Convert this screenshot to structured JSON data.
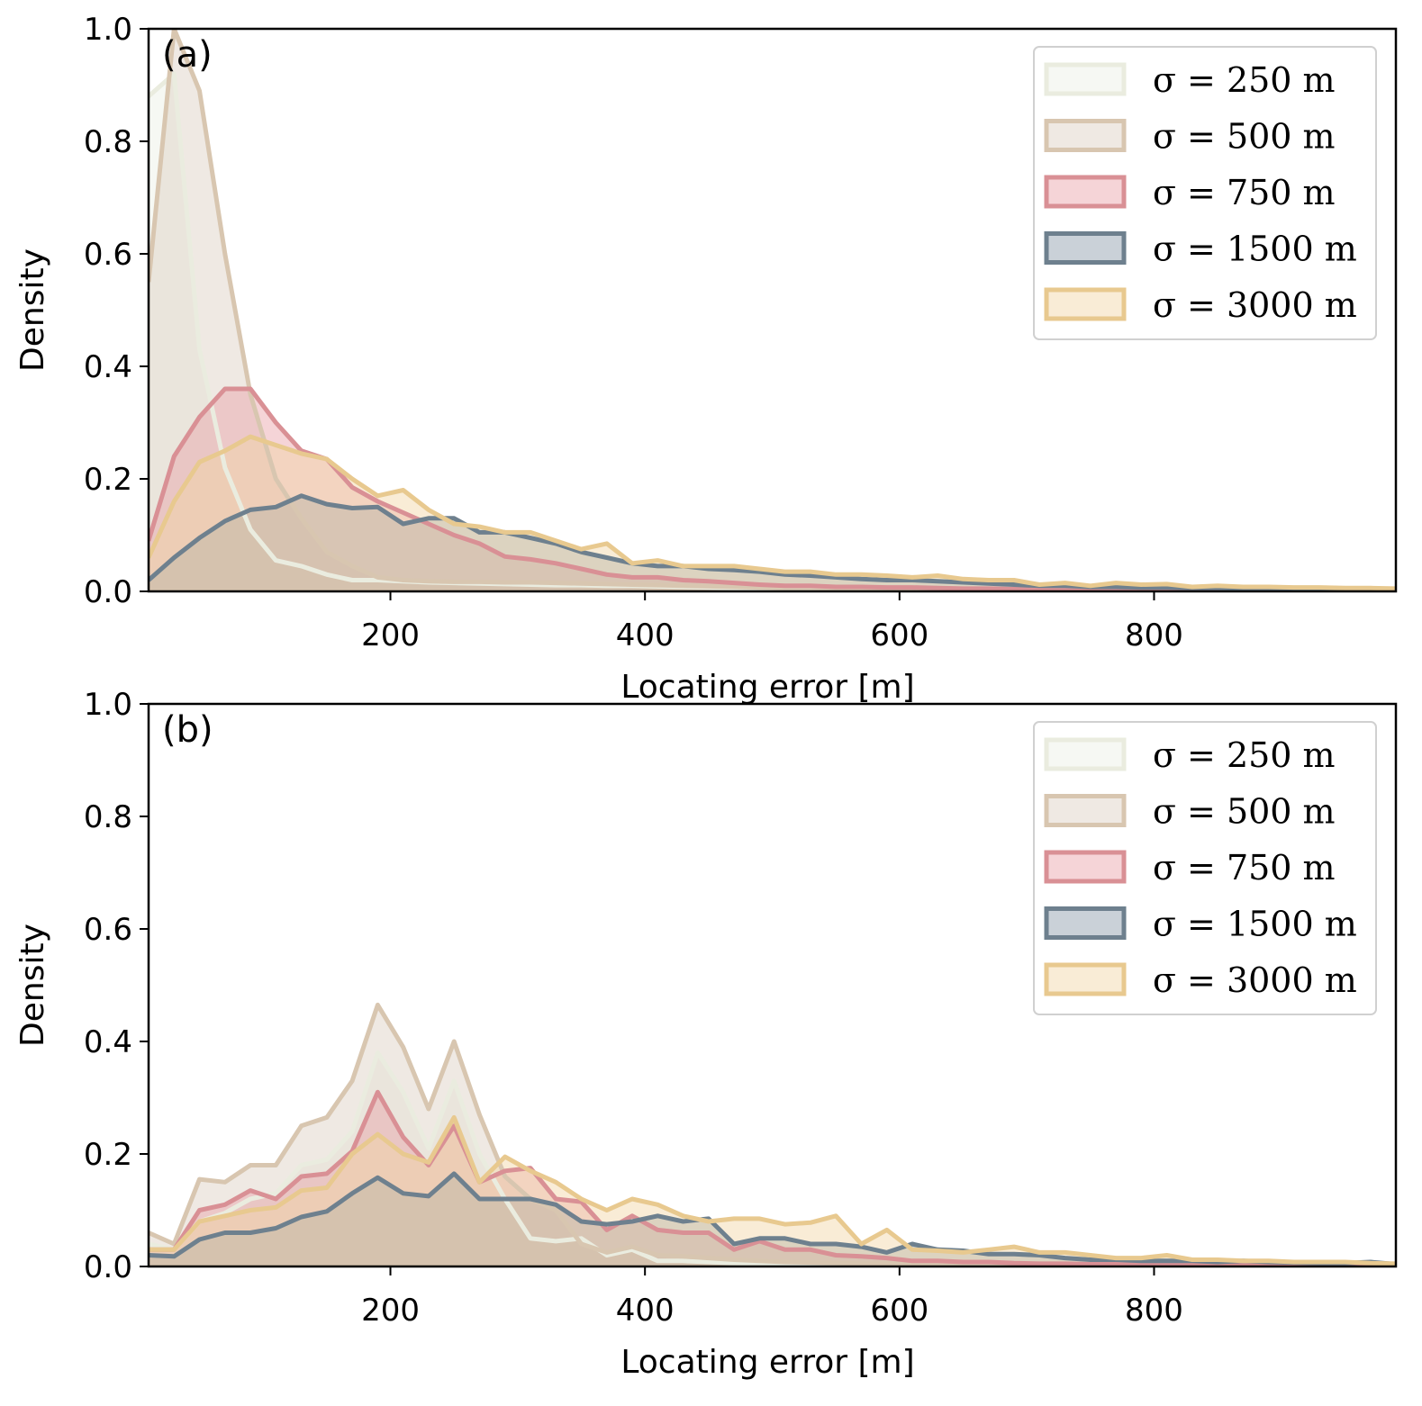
{
  "chart_data": [
    {
      "type": "area",
      "panel_label": "(a)",
      "xlabel": "Locating error [m]",
      "ylabel": "Density",
      "xlim": [
        10,
        990
      ],
      "ylim": [
        0,
        1.0
      ],
      "xticks": [
        200,
        400,
        600,
        800
      ],
      "yticks": [
        0.0,
        0.2,
        0.4,
        0.6,
        0.8,
        1.0
      ],
      "xtick_labels": [
        "200",
        "400",
        "600",
        "800"
      ],
      "ytick_labels": [
        "0.0",
        "0.2",
        "0.4",
        "0.6",
        "0.8",
        "1.0"
      ],
      "grid": false,
      "legend_position": "top-right",
      "x": [
        10,
        30,
        50,
        70,
        90,
        110,
        130,
        150,
        170,
        190,
        210,
        230,
        250,
        270,
        290,
        310,
        330,
        350,
        370,
        390,
        410,
        430,
        450,
        470,
        490,
        510,
        530,
        550,
        570,
        590,
        610,
        630,
        650,
        670,
        690,
        710,
        730,
        750,
        770,
        790,
        810,
        830,
        850,
        870,
        890,
        910,
        930,
        950,
        970,
        990
      ],
      "series": [
        {
          "name": "σ = 250 m",
          "values": [
            0.88,
            0.92,
            0.43,
            0.22,
            0.11,
            0.055,
            0.045,
            0.03,
            0.02,
            0.02,
            0.018,
            0.016,
            0.015,
            0.014,
            0.013,
            0.012,
            0.011,
            0.011,
            0.01,
            0.01,
            0.009,
            0.008,
            0.007,
            0.006,
            0.006,
            0.005,
            0.005,
            0.004,
            0.004,
            0.004,
            0.003,
            0.003,
            0.003,
            0.002,
            0.002,
            0.002,
            0.002,
            0.002,
            0.001,
            0.001,
            0.001,
            0.001,
            0.001,
            0.001,
            0.001,
            0.001,
            0.001,
            0.001,
            0.001,
            0.001
          ]
        },
        {
          "name": "σ = 500 m",
          "values": [
            0.55,
            1.0,
            0.89,
            0.6,
            0.35,
            0.2,
            0.13,
            0.07,
            0.045,
            0.025,
            0.02,
            0.018,
            0.017,
            0.017,
            0.016,
            0.016,
            0.015,
            0.014,
            0.013,
            0.012,
            0.011,
            0.01,
            0.009,
            0.008,
            0.007,
            0.006,
            0.006,
            0.005,
            0.005,
            0.004,
            0.004,
            0.004,
            0.003,
            0.003,
            0.003,
            0.003,
            0.002,
            0.002,
            0.002,
            0.002,
            0.002,
            0.002,
            0.001,
            0.001,
            0.001,
            0.001,
            0.001,
            0.001,
            0.001,
            0.001
          ]
        },
        {
          "name": "σ = 750 m",
          "values": [
            0.09,
            0.24,
            0.31,
            0.36,
            0.36,
            0.3,
            0.25,
            0.235,
            0.185,
            0.16,
            0.14,
            0.12,
            0.1,
            0.085,
            0.062,
            0.057,
            0.05,
            0.04,
            0.03,
            0.025,
            0.025,
            0.02,
            0.018,
            0.015,
            0.012,
            0.01,
            0.01,
            0.008,
            0.008,
            0.007,
            0.007,
            0.006,
            0.005,
            0.005,
            0.004,
            0.004,
            0.004,
            0.003,
            0.003,
            0.003,
            0.002,
            0.002,
            0.002,
            0.002,
            0.001,
            0.001,
            0.001,
            0.001,
            0.001,
            0.001
          ]
        },
        {
          "name": "σ = 1500 m",
          "values": [
            0.02,
            0.06,
            0.095,
            0.125,
            0.145,
            0.15,
            0.17,
            0.155,
            0.148,
            0.15,
            0.12,
            0.13,
            0.13,
            0.105,
            0.105,
            0.095,
            0.085,
            0.07,
            0.06,
            0.05,
            0.045,
            0.045,
            0.04,
            0.038,
            0.035,
            0.03,
            0.028,
            0.025,
            0.022,
            0.02,
            0.02,
            0.018,
            0.016,
            0.014,
            0.012,
            0.01,
            0.01,
            0.008,
            0.008,
            0.007,
            0.007,
            0.006,
            0.006,
            0.005,
            0.005,
            0.005,
            0.004,
            0.004,
            0.004,
            0.003
          ]
        },
        {
          "name": "σ = 3000 m",
          "values": [
            0.06,
            0.16,
            0.23,
            0.25,
            0.275,
            0.26,
            0.245,
            0.235,
            0.2,
            0.17,
            0.18,
            0.145,
            0.12,
            0.115,
            0.105,
            0.105,
            0.09,
            0.075,
            0.085,
            0.05,
            0.055,
            0.045,
            0.045,
            0.045,
            0.04,
            0.035,
            0.035,
            0.03,
            0.03,
            0.028,
            0.025,
            0.028,
            0.022,
            0.02,
            0.02,
            0.012,
            0.015,
            0.01,
            0.015,
            0.012,
            0.013,
            0.008,
            0.01,
            0.008,
            0.008,
            0.007,
            0.007,
            0.006,
            0.006,
            0.005
          ]
        }
      ]
    },
    {
      "type": "area",
      "panel_label": "(b)",
      "xlabel": "Locating error [m]",
      "ylabel": "Density",
      "xlim": [
        10,
        990
      ],
      "ylim": [
        0,
        1.0
      ],
      "xticks": [
        200,
        400,
        600,
        800
      ],
      "yticks": [
        0.0,
        0.2,
        0.4,
        0.6,
        0.8,
        1.0
      ],
      "xtick_labels": [
        "200",
        "400",
        "600",
        "800"
      ],
      "ytick_labels": [
        "0.0",
        "0.2",
        "0.4",
        "0.6",
        "0.8",
        "1.0"
      ],
      "grid": false,
      "legend_position": "top-right",
      "x": [
        10,
        30,
        50,
        70,
        90,
        110,
        130,
        150,
        170,
        190,
        210,
        230,
        250,
        270,
        290,
        310,
        330,
        350,
        370,
        390,
        410,
        430,
        450,
        470,
        490,
        510,
        530,
        550,
        570,
        590,
        610,
        630,
        650,
        670,
        690,
        710,
        730,
        750,
        770,
        790,
        810,
        830,
        850,
        870,
        890,
        910,
        930,
        950,
        970,
        990
      ],
      "series": [
        {
          "name": "σ = 250 m",
          "values": [
            0.04,
            0.03,
            0.08,
            0.095,
            0.12,
            0.13,
            0.18,
            0.19,
            0.24,
            0.38,
            0.31,
            0.21,
            0.33,
            0.2,
            0.12,
            0.05,
            0.045,
            0.05,
            0.02,
            0.03,
            0.01,
            0.01,
            0.008,
            0.006,
            0.005,
            0.004,
            0.004,
            0.003,
            0.003,
            0.002,
            0.002,
            0.002,
            0.002,
            0.001,
            0.001,
            0.001,
            0.001,
            0.001,
            0.001,
            0.001,
            0.001,
            0.001,
            0.001,
            0.001,
            0.001,
            0.001,
            0.001,
            0.001,
            0.001,
            0.001
          ]
        },
        {
          "name": "σ = 500 m",
          "values": [
            0.06,
            0.04,
            0.155,
            0.15,
            0.18,
            0.18,
            0.25,
            0.265,
            0.33,
            0.465,
            0.39,
            0.28,
            0.4,
            0.27,
            0.16,
            0.12,
            0.1,
            0.04,
            0.025,
            0.035,
            0.02,
            0.018,
            0.015,
            0.012,
            0.01,
            0.008,
            0.007,
            0.006,
            0.005,
            0.005,
            0.004,
            0.004,
            0.003,
            0.003,
            0.003,
            0.002,
            0.002,
            0.002,
            0.002,
            0.002,
            0.001,
            0.001,
            0.001,
            0.001,
            0.001,
            0.001,
            0.001,
            0.001,
            0.001,
            0.001
          ]
        },
        {
          "name": "σ = 750 m",
          "values": [
            0.03,
            0.03,
            0.1,
            0.11,
            0.135,
            0.12,
            0.16,
            0.165,
            0.205,
            0.31,
            0.23,
            0.18,
            0.25,
            0.15,
            0.17,
            0.175,
            0.12,
            0.115,
            0.065,
            0.09,
            0.065,
            0.06,
            0.06,
            0.03,
            0.045,
            0.03,
            0.03,
            0.02,
            0.018,
            0.015,
            0.01,
            0.01,
            0.008,
            0.008,
            0.006,
            0.005,
            0.005,
            0.004,
            0.004,
            0.003,
            0.003,
            0.003,
            0.002,
            0.002,
            0.002,
            0.002,
            0.001,
            0.001,
            0.001,
            0.001
          ]
        },
        {
          "name": "σ = 1500 m",
          "values": [
            0.02,
            0.018,
            0.048,
            0.06,
            0.06,
            0.068,
            0.088,
            0.098,
            0.13,
            0.158,
            0.13,
            0.125,
            0.165,
            0.12,
            0.12,
            0.12,
            0.11,
            0.08,
            0.075,
            0.08,
            0.09,
            0.08,
            0.085,
            0.04,
            0.05,
            0.05,
            0.04,
            0.04,
            0.035,
            0.025,
            0.04,
            0.03,
            0.028,
            0.022,
            0.022,
            0.02,
            0.015,
            0.012,
            0.012,
            0.01,
            0.01,
            0.01,
            0.008,
            0.01,
            0.008,
            0.007,
            0.006,
            0.006,
            0.008,
            0.004
          ]
        },
        {
          "name": "σ = 3000 m",
          "values": [
            0.03,
            0.03,
            0.08,
            0.09,
            0.1,
            0.105,
            0.135,
            0.14,
            0.2,
            0.235,
            0.2,
            0.185,
            0.265,
            0.15,
            0.195,
            0.17,
            0.15,
            0.12,
            0.1,
            0.12,
            0.11,
            0.09,
            0.08,
            0.085,
            0.085,
            0.075,
            0.078,
            0.09,
            0.04,
            0.065,
            0.03,
            0.028,
            0.025,
            0.03,
            0.035,
            0.025,
            0.025,
            0.02,
            0.015,
            0.015,
            0.02,
            0.012,
            0.012,
            0.01,
            0.01,
            0.008,
            0.008,
            0.008,
            0.006,
            0.005
          ]
        }
      ]
    }
  ],
  "series_colors": [
    {
      "fill": "#ecefe4",
      "stroke": "#eaecdf"
    },
    {
      "fill": "#dccfc0",
      "stroke": "#d8c6b0"
    },
    {
      "fill": "#e8a0a6",
      "stroke": "#d99095"
    },
    {
      "fill": "#8a98a8",
      "stroke": "#6e808e"
    },
    {
      "fill": "#f2d4a4",
      "stroke": "#e8c98f"
    }
  ]
}
